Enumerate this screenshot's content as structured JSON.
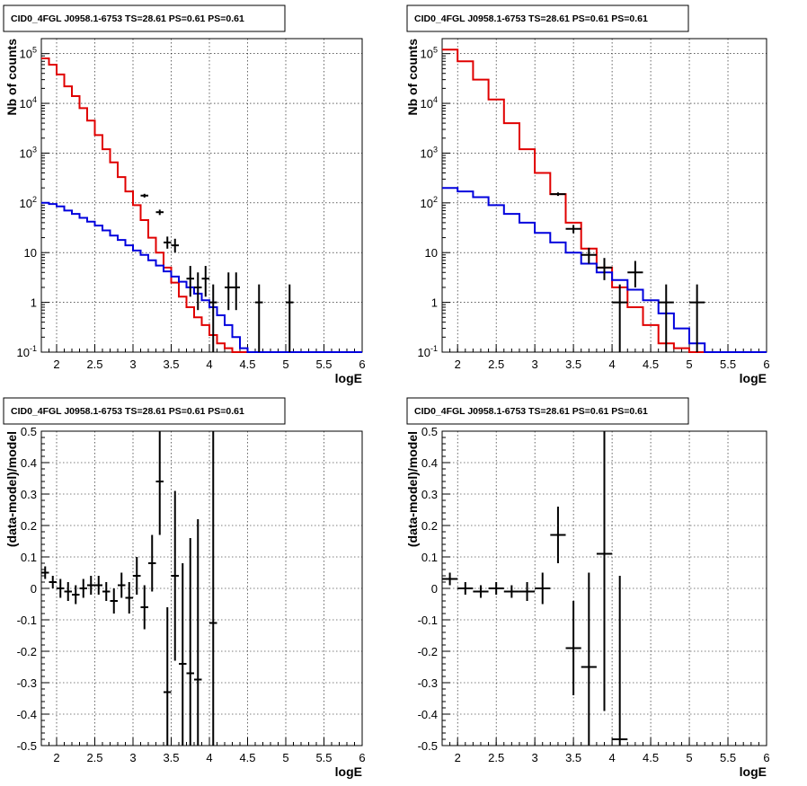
{
  "colors": {
    "data": "#000000",
    "total_model": "#e00000",
    "source_model": "#0000dd",
    "grid": "#000000"
  },
  "chart_data": [
    {
      "type": "line",
      "title": "CID0_4FGL J0958.1-6753 TS=28.61 PS=0.61 PS=0.61",
      "xlabel": "logE",
      "ylabel": "Nb of counts",
      "xlim": [
        1.8,
        6.0
      ],
      "ylim": [
        0.1,
        200000
      ],
      "yscale": "log",
      "grid": true,
      "x_ticks": [
        "2",
        "2.5",
        "3",
        "3.5",
        "4",
        "4.5",
        "5",
        "5.5",
        "6"
      ],
      "y_ticks": [
        "10^-1",
        "1",
        "10",
        "10^2",
        "10^3",
        "10^4",
        "10^5"
      ],
      "series": [
        {
          "style": "step",
          "color": "#e00000",
          "edges": [
            1.8,
            1.9,
            2.0,
            2.1,
            2.2,
            2.3,
            2.4,
            2.5,
            2.6,
            2.7,
            2.8,
            2.9,
            3.0,
            3.1,
            3.2,
            3.3,
            3.4,
            3.5,
            3.6,
            3.7,
            3.8,
            3.9,
            4.0,
            4.1,
            4.2,
            4.3,
            4.4,
            4.5,
            4.6,
            4.7,
            4.8,
            4.9,
            5.0,
            5.1,
            5.2,
            5.3,
            5.4,
            5.5,
            5.6,
            5.7,
            5.8,
            5.9,
            6.0
          ],
          "values": [
            80000,
            60000,
            38000,
            22000,
            14000,
            8000,
            4500,
            2300,
            1200,
            650,
            330,
            170,
            90,
            45,
            20,
            10,
            5,
            2.5,
            1.3,
            0.8,
            0.5,
            0.35,
            0.22,
            0.15,
            0.12,
            0.1,
            0.1,
            0.1,
            0.1,
            0.1,
            0.1,
            0.1,
            0.1,
            0.1,
            0.1,
            0.1,
            0.1,
            0.1,
            0.1,
            0.1,
            0.1,
            0.1
          ]
        },
        {
          "style": "step",
          "color": "#0000dd",
          "edges": [
            1.8,
            1.9,
            2.0,
            2.1,
            2.2,
            2.3,
            2.4,
            2.5,
            2.6,
            2.7,
            2.8,
            2.9,
            3.0,
            3.1,
            3.2,
            3.3,
            3.4,
            3.5,
            3.6,
            3.7,
            3.8,
            3.9,
            4.0,
            4.1,
            4.2,
            4.3,
            4.4,
            4.5,
            4.6,
            4.7,
            4.8,
            4.9,
            5.0,
            5.1,
            5.2,
            5.3,
            5.4,
            5.5,
            5.6,
            5.7,
            5.8,
            5.9,
            6.0
          ],
          "values": [
            100,
            95,
            85,
            70,
            60,
            50,
            42,
            35,
            28,
            22,
            18,
            14,
            11,
            9,
            7,
            5.5,
            4.2,
            3.3,
            2.6,
            2.0,
            1.5,
            1.1,
            0.8,
            0.55,
            0.35,
            0.2,
            0.12,
            0.1,
            0.1,
            0.1,
            0.1,
            0.1,
            0.1,
            0.1,
            0.1,
            0.1,
            0.1,
            0.1,
            0.1,
            0.1,
            0.1,
            0.1
          ]
        },
        {
          "style": "errorbar",
          "color": "#000000",
          "x": [
            3.15,
            3.35,
            3.45,
            3.55,
            3.75,
            3.85,
            3.95,
            4.05,
            4.25,
            4.35,
            4.65,
            5.05
          ],
          "xerr": 0.05,
          "y": [
            140,
            65,
            16,
            14,
            3,
            2,
            3,
            1,
            2,
            2,
            1,
            1
          ],
          "yerr_low": [
            12,
            8,
            4,
            4,
            1.7,
            1.3,
            1.7,
            0.9,
            1.3,
            1.3,
            0.9,
            0.9
          ],
          "yerr_high": [
            12,
            8,
            5,
            5,
            2.4,
            2.0,
            2.4,
            1.3,
            2.0,
            2.0,
            1.3,
            1.3
          ]
        }
      ]
    },
    {
      "type": "line",
      "title": "CID0_4FGL J0958.1-6753 TS=28.61 PS=0.61 PS=0.61",
      "xlabel": "logE",
      "ylabel": "Nb of counts",
      "xlim": [
        1.8,
        6.0
      ],
      "ylim": [
        0.1,
        200000
      ],
      "yscale": "log",
      "grid": true,
      "x_ticks": [
        "2",
        "2.5",
        "3",
        "3.5",
        "4",
        "4.5",
        "5",
        "5.5",
        "6"
      ],
      "y_ticks": [
        "10^-1",
        "1",
        "10",
        "10^2",
        "10^3",
        "10^4",
        "10^5"
      ],
      "series": [
        {
          "style": "step",
          "color": "#e00000",
          "edges": [
            1.8,
            2.0,
            2.2,
            2.4,
            2.6,
            2.8,
            3.0,
            3.2,
            3.4,
            3.6,
            3.8,
            4.0,
            4.2,
            4.4,
            4.6,
            4.8,
            5.0,
            5.2,
            5.4,
            5.6,
            5.8,
            6.0
          ],
          "values": [
            120000,
            70000,
            30000,
            12000,
            4000,
            1200,
            400,
            150,
            40,
            12,
            5,
            2,
            0.8,
            0.35,
            0.15,
            0.12,
            0.1,
            0.1,
            0.1,
            0.1,
            0.1
          ]
        },
        {
          "style": "step",
          "color": "#0000dd",
          "edges": [
            1.8,
            2.0,
            2.2,
            2.4,
            2.6,
            2.8,
            3.0,
            3.2,
            3.4,
            3.6,
            3.8,
            4.0,
            4.2,
            4.4,
            4.6,
            4.8,
            5.0,
            5.2,
            5.4,
            5.6,
            5.8,
            6.0
          ],
          "values": [
            200,
            170,
            130,
            90,
            60,
            40,
            25,
            16,
            10,
            6,
            4,
            2.8,
            1.8,
            1.1,
            0.6,
            0.3,
            0.15,
            0.1,
            0.1,
            0.1,
            0.1
          ]
        },
        {
          "style": "errorbar",
          "color": "#000000",
          "x": [
            3.3,
            3.5,
            3.7,
            3.9,
            4.1,
            4.3,
            4.7,
            5.1
          ],
          "xerr": 0.1,
          "y": [
            150,
            30,
            9,
            5,
            1,
            4,
            1,
            1
          ],
          "yerr_low": [
            12,
            5.5,
            3,
            2.2,
            0.9,
            2,
            0.9,
            0.9
          ],
          "yerr_high": [
            12,
            6,
            3.5,
            2.8,
            1.3,
            2.8,
            1.3,
            1.3
          ]
        }
      ]
    },
    {
      "type": "scatter",
      "title": "CID0_4FGL J0958.1-6753 TS=28.61 PS=0.61 PS=0.61",
      "xlabel": "logE",
      "ylabel": "(data-model)/model",
      "xlim": [
        1.8,
        6.0
      ],
      "ylim": [
        -0.5,
        0.5
      ],
      "grid": true,
      "x_ticks": [
        "2",
        "2.5",
        "3",
        "3.5",
        "4",
        "4.5",
        "5",
        "5.5",
        "6"
      ],
      "y_ticks": [
        "-0.5",
        "-0.4",
        "-0.3",
        "-0.2",
        "-0.1",
        "0",
        "0.1",
        "0.2",
        "0.3",
        "0.4",
        "0.5"
      ],
      "series": [
        {
          "style": "errorbar",
          "color": "#000000",
          "x": [
            1.85,
            1.95,
            2.05,
            2.15,
            2.25,
            2.35,
            2.45,
            2.55,
            2.65,
            2.75,
            2.85,
            2.95,
            3.05,
            3.15,
            3.25,
            3.35,
            3.45,
            3.55,
            3.65,
            3.75,
            3.85,
            4.05
          ],
          "xerr": 0.05,
          "y": [
            0.05,
            0.02,
            0.0,
            -0.01,
            -0.02,
            0.0,
            0.01,
            0.01,
            -0.01,
            -0.04,
            0.01,
            -0.03,
            0.04,
            -0.06,
            0.08,
            0.34,
            -0.33,
            0.04,
            -0.24,
            -0.27,
            -0.29,
            -0.11
          ],
          "yerr": [
            0.02,
            0.02,
            0.03,
            0.03,
            0.03,
            0.03,
            0.03,
            0.03,
            0.03,
            0.04,
            0.04,
            0.05,
            0.06,
            0.07,
            0.09,
            0.17,
            0.27,
            0.27,
            0.32,
            0.43,
            0.51,
            0.62
          ]
        }
      ]
    },
    {
      "type": "scatter",
      "title": "CID0_4FGL J0958.1-6753 TS=28.61 PS=0.61 PS=0.61",
      "xlabel": "logE",
      "ylabel": "(data-model)/model",
      "xlim": [
        1.8,
        6.0
      ],
      "ylim": [
        -0.5,
        0.5
      ],
      "grid": true,
      "x_ticks": [
        "2",
        "2.5",
        "3",
        "3.5",
        "4",
        "4.5",
        "5",
        "5.5",
        "6"
      ],
      "y_ticks": [
        "-0.5",
        "-0.4",
        "-0.3",
        "-0.2",
        "-0.1",
        "0",
        "0.1",
        "0.2",
        "0.3",
        "0.4",
        "0.5"
      ],
      "series": [
        {
          "style": "errorbar",
          "color": "#000000",
          "x": [
            1.9,
            2.1,
            2.3,
            2.5,
            2.7,
            2.9,
            3.1,
            3.3,
            3.5,
            3.7,
            3.9,
            4.1
          ],
          "xerr": 0.1,
          "y": [
            0.03,
            0.0,
            -0.01,
            0.0,
            -0.01,
            -0.01,
            0.0,
            0.17,
            -0.19,
            -0.25,
            0.11,
            -0.48
          ],
          "yerr": [
            0.02,
            0.02,
            0.02,
            0.02,
            0.02,
            0.03,
            0.05,
            0.09,
            0.15,
            0.3,
            0.5,
            0.52
          ]
        }
      ]
    }
  ]
}
